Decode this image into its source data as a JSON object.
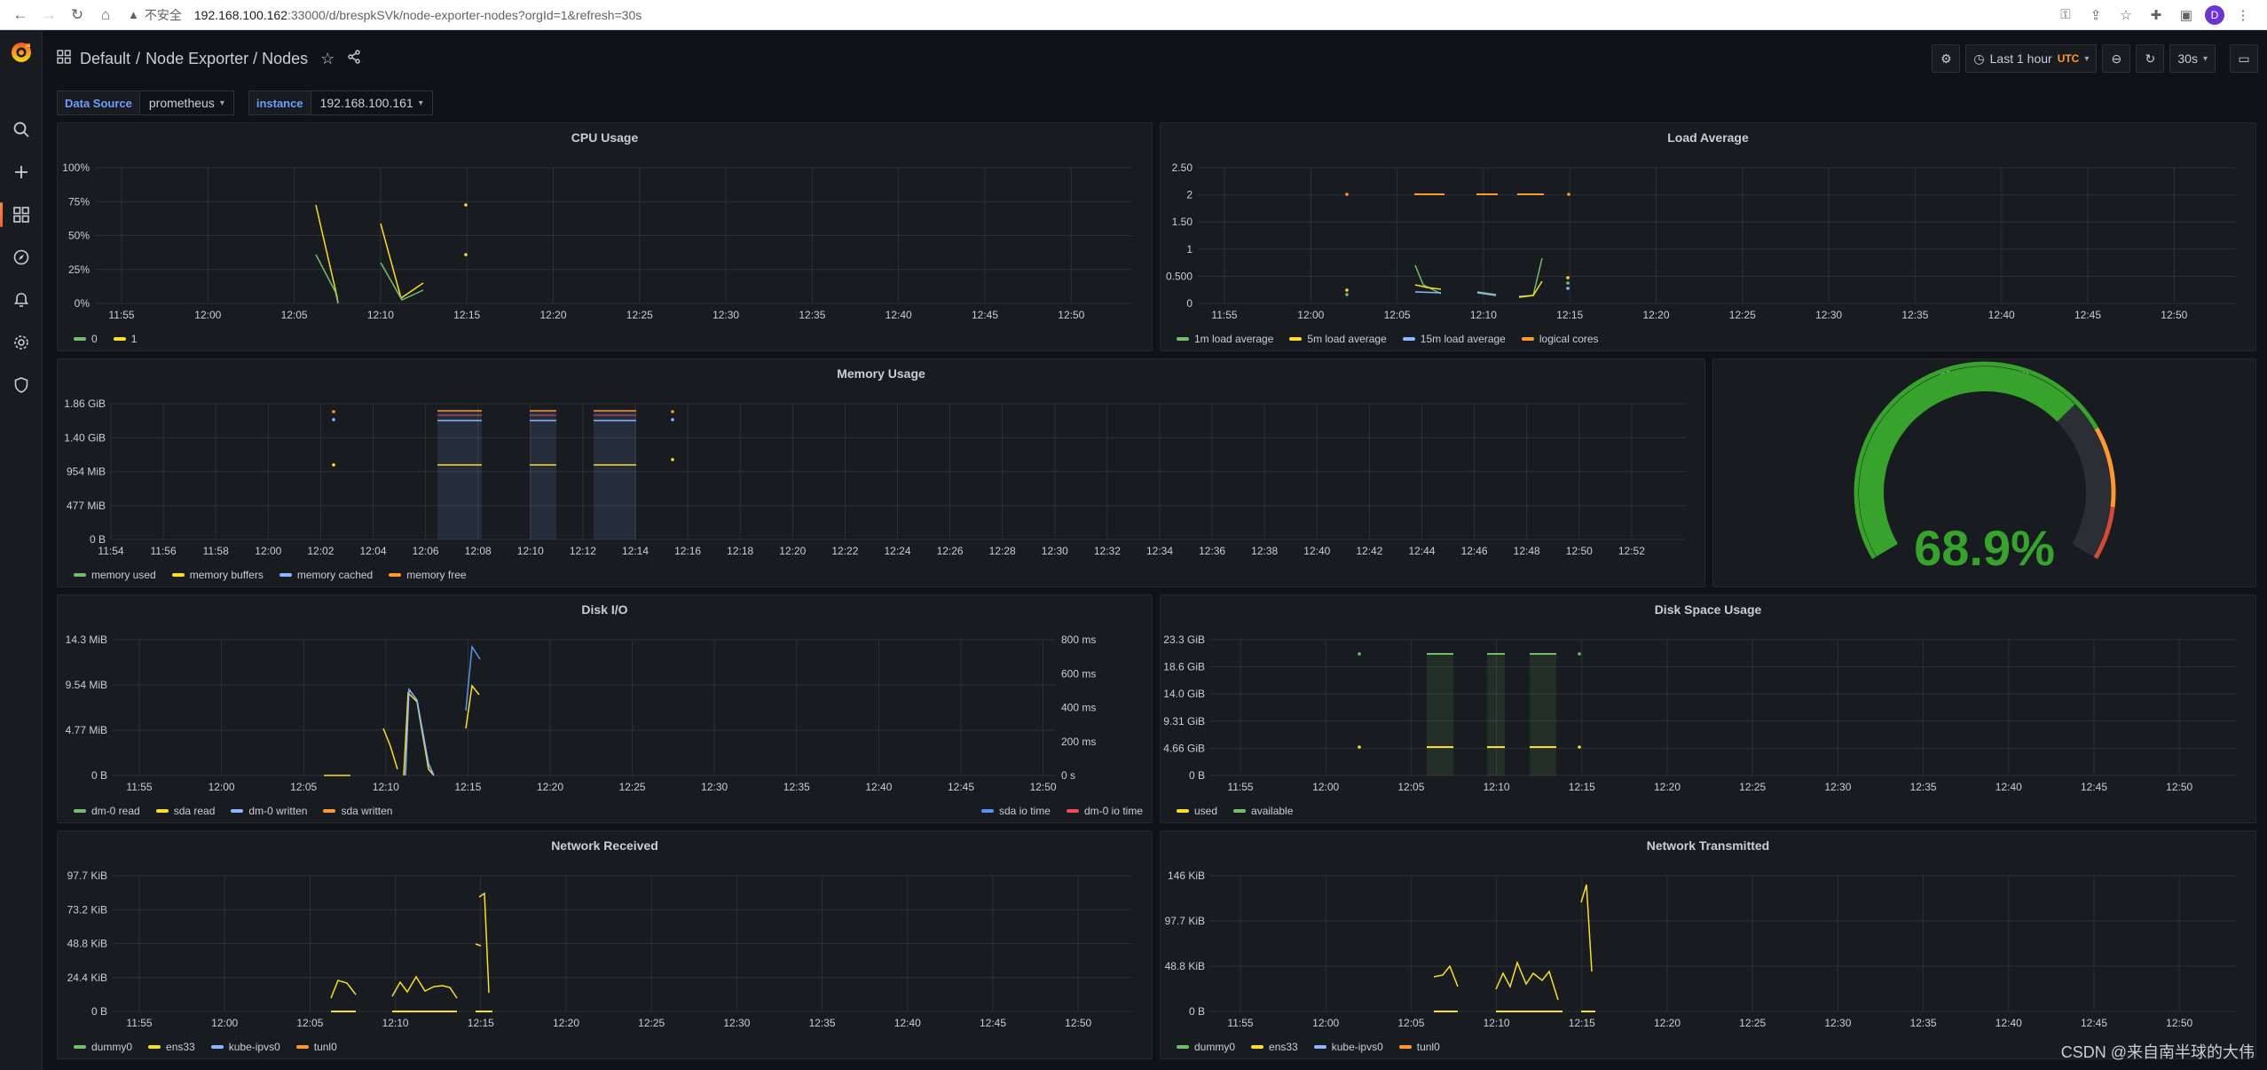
{
  "browser": {
    "insecure_label": "不安全",
    "url_host": "192.168.100.162",
    "url_rest": ":33000/d/brespkSVk/node-exporter-nodes?orgId=1&refresh=30s",
    "profile_initial": "D"
  },
  "sidebar": {
    "items": [
      "search-icon",
      "plus-icon",
      "dashboards-icon",
      "explore-icon",
      "alerting-icon",
      "configuration-icon",
      "shield-icon"
    ]
  },
  "header": {
    "folder": "Default",
    "sep": "/",
    "title": "Node Exporter / Nodes",
    "time_range": "Last 1 hour",
    "timezone": "UTC",
    "refresh": "30s"
  },
  "variables": [
    {
      "label": "Data Source",
      "value": "prometheus"
    },
    {
      "label": "instance",
      "value": "192.168.100.161"
    }
  ],
  "colors": {
    "green": "#73bf69",
    "yellow": "#fade2a",
    "blue": "#5794f2",
    "cyan": "#8ab8ff",
    "orange": "#ff9830",
    "red": "#f2495c"
  },
  "panels": {
    "cpu": {
      "title": "CPU Usage",
      "y_ticks": [
        "100%",
        "75%",
        "50%",
        "25%",
        "0%"
      ],
      "x_ticks": [
        "11:55",
        "12:00",
        "12:05",
        "12:10",
        "12:15",
        "12:20",
        "12:25",
        "12:30",
        "12:35",
        "12:40",
        "12:45",
        "12:50"
      ],
      "legend": [
        {
          "name": "0",
          "color": "#73bf69"
        },
        {
          "name": "1",
          "color": "#fade2a"
        }
      ]
    },
    "load": {
      "title": "Load Average",
      "y_ticks": [
        "2.50",
        "2",
        "1.50",
        "1",
        "0.500",
        "0"
      ],
      "x_ticks": [
        "11:55",
        "12:00",
        "12:05",
        "12:10",
        "12:15",
        "12:20",
        "12:25",
        "12:30",
        "12:35",
        "12:40",
        "12:45",
        "12:50"
      ],
      "legend": [
        {
          "name": "1m load average",
          "color": "#73bf69"
        },
        {
          "name": "5m load average",
          "color": "#fade2a"
        },
        {
          "name": "15m load average",
          "color": "#8ab8ff"
        },
        {
          "name": "logical cores",
          "color": "#ff9830"
        }
      ]
    },
    "memory": {
      "title": "Memory Usage",
      "y_ticks": [
        "1.86 GiB",
        "1.40 GiB",
        "954 MiB",
        "477 MiB",
        "0 B"
      ],
      "x_ticks": [
        "11:54",
        "11:56",
        "11:58",
        "12:00",
        "12:02",
        "12:04",
        "12:06",
        "12:08",
        "12:10",
        "12:12",
        "12:14",
        "12:16",
        "12:18",
        "12:20",
        "12:22",
        "12:24",
        "12:26",
        "12:28",
        "12:30",
        "12:32",
        "12:34",
        "12:36",
        "12:38",
        "12:40",
        "12:42",
        "12:44",
        "12:46",
        "12:48",
        "12:50",
        "12:52"
      ],
      "legend": [
        {
          "name": "memory used",
          "color": "#73bf69"
        },
        {
          "name": "memory buffers",
          "color": "#fade2a"
        },
        {
          "name": "memory cached",
          "color": "#8ab8ff"
        },
        {
          "name": "memory free",
          "color": "#ff9830"
        }
      ]
    },
    "memgauge": {
      "title": "Memory Usage",
      "value": "68.9%",
      "fraction": 0.689
    },
    "diskio": {
      "title": "Disk I/O",
      "y_ticks": [
        "14.3 MiB",
        "9.54 MiB",
        "4.77 MiB",
        "0 B"
      ],
      "y2_ticks": [
        "800 ms",
        "600 ms",
        "400 ms",
        "200 ms",
        "0 s"
      ],
      "x_ticks": [
        "11:55",
        "12:00",
        "12:05",
        "12:10",
        "12:15",
        "12:20",
        "12:25",
        "12:30",
        "12:35",
        "12:40",
        "12:45",
        "12:50"
      ],
      "legend": [
        {
          "name": "dm-0 read",
          "color": "#73bf69"
        },
        {
          "name": "sda read",
          "color": "#fade2a"
        },
        {
          "name": "dm-0 written",
          "color": "#8ab8ff"
        },
        {
          "name": "sda written",
          "color": "#ff9830"
        }
      ],
      "legend_right": [
        {
          "name": "sda io time",
          "color": "#5794f2"
        },
        {
          "name": "dm-0 io time",
          "color": "#f2495c"
        }
      ]
    },
    "diskspace": {
      "title": "Disk Space Usage",
      "y_ticks": [
        "23.3 GiB",
        "18.6 GiB",
        "14.0 GiB",
        "9.31 GiB",
        "4.66 GiB",
        "0 B"
      ],
      "x_ticks": [
        "11:55",
        "12:00",
        "12:05",
        "12:10",
        "12:15",
        "12:20",
        "12:25",
        "12:30",
        "12:35",
        "12:40",
        "12:45",
        "12:50"
      ],
      "legend": [
        {
          "name": "used",
          "color": "#fade2a"
        },
        {
          "name": "available",
          "color": "#73bf69"
        }
      ]
    },
    "netrx": {
      "title": "Network Received",
      "y_ticks": [
        "97.7 KiB",
        "73.2 KiB",
        "48.8 KiB",
        "24.4 KiB",
        "0 B"
      ],
      "x_ticks": [
        "11:55",
        "12:00",
        "12:05",
        "12:10",
        "12:15",
        "12:20",
        "12:25",
        "12:30",
        "12:35",
        "12:40",
        "12:45",
        "12:50"
      ],
      "legend": [
        {
          "name": "dummy0",
          "color": "#73bf69"
        },
        {
          "name": "ens33",
          "color": "#fade2a"
        },
        {
          "name": "kube-ipvs0",
          "color": "#8ab8ff"
        },
        {
          "name": "tunl0",
          "color": "#ff9830"
        }
      ]
    },
    "nettx": {
      "title": "Network Transmitted",
      "y_ticks": [
        "146 KiB",
        "97.7 KiB",
        "48.8 KiB",
        "0 B"
      ],
      "x_ticks": [
        "11:55",
        "12:00",
        "12:05",
        "12:10",
        "12:15",
        "12:20",
        "12:25",
        "12:30",
        "12:35",
        "12:40",
        "12:45",
        "12:50"
      ],
      "legend": [
        {
          "name": "dummy0",
          "color": "#73bf69"
        },
        {
          "name": "ens33",
          "color": "#fade2a"
        },
        {
          "name": "kube-ipvs0",
          "color": "#8ab8ff"
        },
        {
          "name": "tunl0",
          "color": "#ff9830"
        }
      ]
    }
  },
  "watermark": "CSDN @来自南半球的大伟"
}
